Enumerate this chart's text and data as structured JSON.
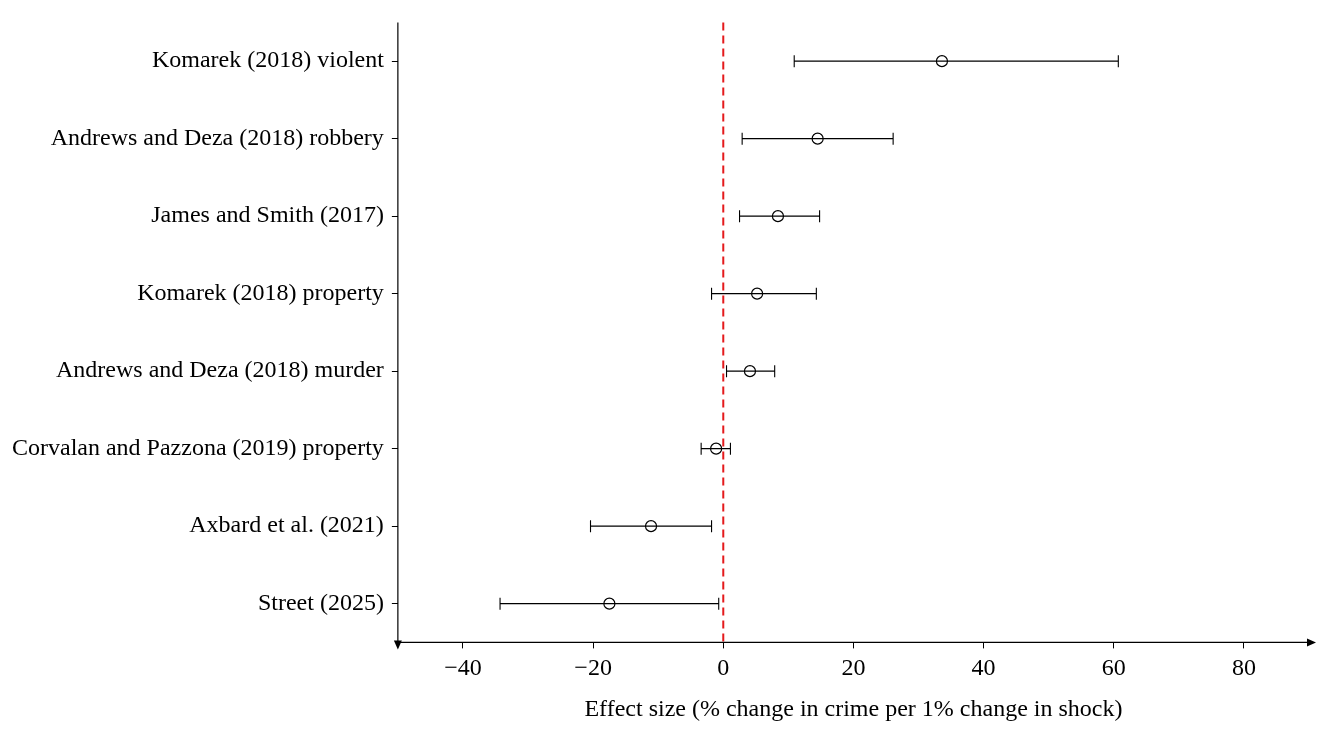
{
  "chart_data": {
    "type": "scatter",
    "orientation": "horizontal",
    "xlabel": "Effect size (% change in crime per 1% change in shock)",
    "categories": [
      "Komarek (2018) violent",
      "Andrews and Deza (2018) robbery",
      "James and Smith (2017)",
      "Komarek (2018) property",
      "Andrews and Deza (2018) murder",
      "Corvalan and Pazzona (2019) property",
      "Axbard et al. (2021)",
      "Street (2025)"
    ],
    "values": [
      33.6,
      14.5,
      8.4,
      5.2,
      4.1,
      -1.1,
      -11.1,
      -17.5
    ],
    "errors": [
      [
        10.9,
        60.7
      ],
      [
        2.9,
        26.1
      ],
      [
        2.5,
        14.8
      ],
      [
        -1.8,
        14.3
      ],
      [
        0.5,
        7.9
      ],
      [
        -3.4,
        1.1
      ],
      [
        -20.4,
        -1.8
      ],
      [
        -34.3,
        -0.7
      ]
    ],
    "color": "#000000",
    "marker": "circle",
    "xlim": [
      -50,
      90
    ],
    "xticks": [
      {
        "value": -40,
        "label": "−40"
      },
      {
        "value": -20,
        "label": "−20"
      },
      0,
      20,
      40,
      60,
      80
    ],
    "ref_lines": [
      {
        "axis": "x",
        "value": 0,
        "color": "#e41a1c",
        "line_style": "dashed"
      }
    ],
    "grid": false,
    "legend": false
  }
}
